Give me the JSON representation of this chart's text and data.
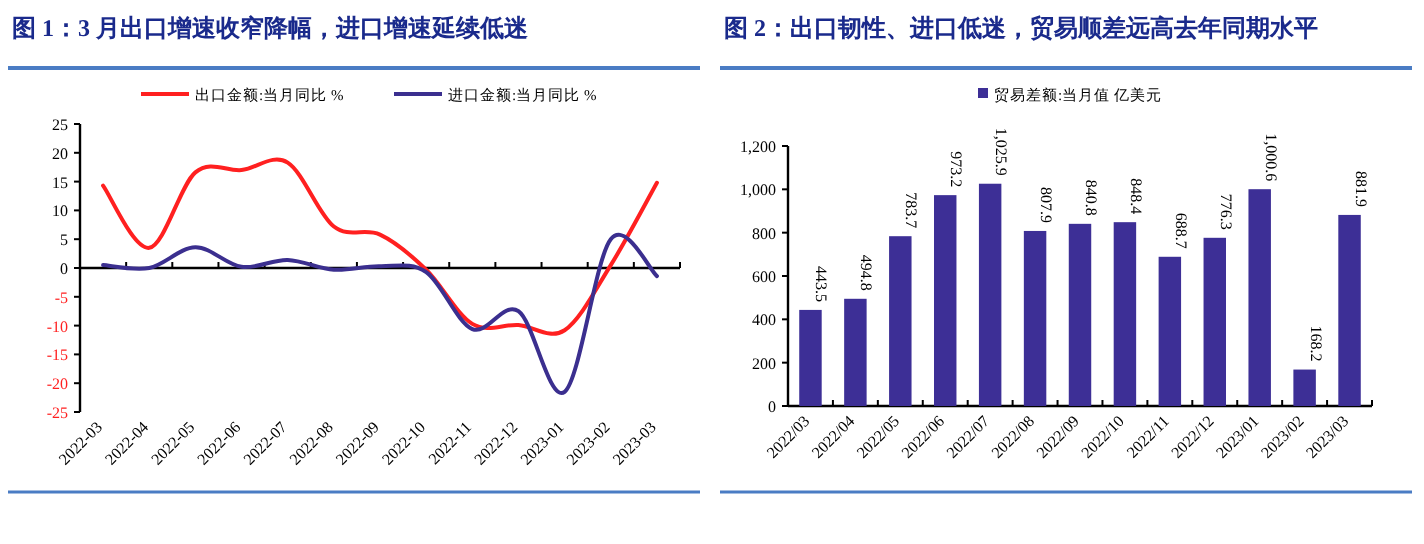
{
  "chart_data": [
    {
      "type": "line",
      "title": "图 1：3 月出口增速收窄降幅，进口增速延续低迷",
      "categories": [
        "2022-03",
        "2022-04",
        "2022-05",
        "2022-06",
        "2022-07",
        "2022-08",
        "2022-09",
        "2022-10",
        "2022-11",
        "2022-12",
        "2023-01",
        "2023-02",
        "2023-03"
      ],
      "series": [
        {
          "name": "出口金额:当月同比 %",
          "color": "#ff2020",
          "values": [
            14.3,
            3.5,
            16.6,
            17.0,
            18.3,
            7.2,
            5.8,
            -0.3,
            -9.7,
            -9.9,
            -10.8,
            0.5,
            14.8
          ]
        },
        {
          "name": "进口金额:当月同比 %",
          "color": "#3b2f8f",
          "values": [
            0.5,
            0.0,
            3.6,
            0.2,
            1.4,
            -0.3,
            0.3,
            -0.7,
            -10.6,
            -7.5,
            -21.5,
            5.0,
            -1.4
          ]
        }
      ],
      "ylim": [
        -25,
        25
      ],
      "yticks": [
        -25,
        -20,
        -15,
        -10,
        -5,
        0,
        5,
        10,
        15,
        20,
        25
      ],
      "legend": "top"
    },
    {
      "type": "bar",
      "title": "图 2：出口韧性、进口低迷，贸易顺差远高去年同期水平",
      "categories": [
        "2022/03",
        "2022/04",
        "2022/05",
        "2022/06",
        "2022/07",
        "2022/08",
        "2022/09",
        "2022/10",
        "2022/11",
        "2022/12",
        "2023/01",
        "2023/02",
        "2023/03"
      ],
      "series": [
        {
          "name": "贸易差额:当月值 亿美元",
          "color": "#3d2f96",
          "values": [
            443.5,
            494.8,
            783.7,
            973.2,
            1025.9,
            807.9,
            840.8,
            848.4,
            688.7,
            776.3,
            1000.6,
            168.2,
            881.9
          ],
          "value_labels": [
            "443.5",
            "494.8",
            "783.7",
            "973.2",
            "1,025.9",
            "807.9",
            "840.8",
            "848.4",
            "688.7",
            "776.3",
            "1,000.6",
            "168.2",
            "881.9"
          ]
        }
      ],
      "ylim": [
        0,
        1200
      ],
      "yticks": [
        0,
        {
          "value": 200,
          "label": "200"
        },
        {
          "value": 400,
          "label": "400"
        },
        {
          "value": 600,
          "label": "600"
        },
        {
          "value": 800,
          "label": "800"
        },
        {
          "value": 1000,
          "label": "1,000"
        },
        {
          "value": 1200,
          "label": "1,200"
        }
      ],
      "legend": "top",
      "grid": false
    }
  ]
}
